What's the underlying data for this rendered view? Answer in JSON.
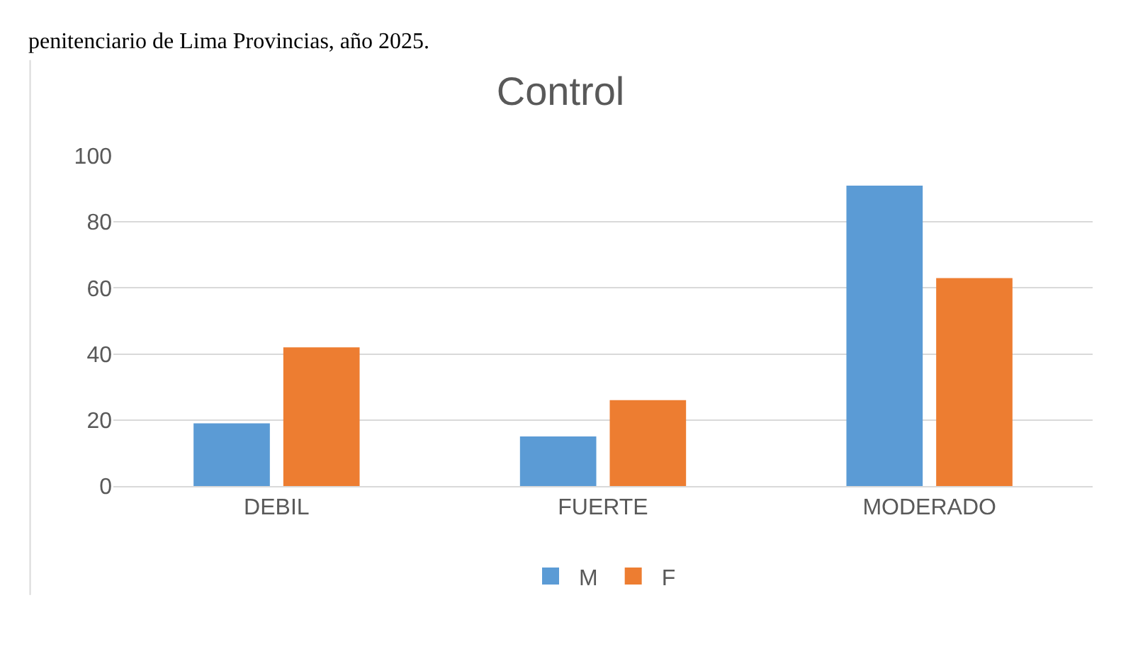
{
  "chart_data": {
    "type": "bar",
    "title": "Control",
    "categories": [
      "DEBIL",
      "FUERTE",
      "MODERADO"
    ],
    "series": [
      {
        "name": "M",
        "color": "#5b9bd5",
        "values": [
          19,
          15,
          91
        ]
      },
      {
        "name": "F",
        "color": "#ed7d31",
        "values": [
          42,
          26,
          63
        ]
      }
    ],
    "ylim": [
      0,
      100
    ],
    "yticks": [
      0,
      20,
      40,
      60,
      80,
      100
    ],
    "grid": "y",
    "legend": "bottom",
    "annotations": [
      "penitenciario de Lima Provincias, año 2025."
    ]
  }
}
